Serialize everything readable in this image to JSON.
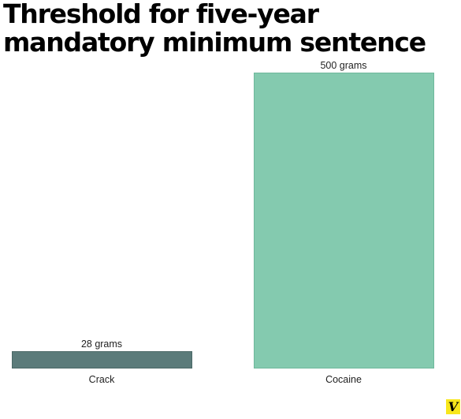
{
  "chart_data": {
    "type": "bar",
    "title": "Threshold for five-year mandatory minimum sentence",
    "categories": [
      "Crack",
      "Cocaine"
    ],
    "values": [
      28,
      500
    ],
    "data_labels": [
      "28 grams",
      "500 grams"
    ],
    "ylim": [
      0,
      500
    ],
    "xlabel": "",
    "ylabel": "",
    "grid": false,
    "legend": "none",
    "colors": [
      "#5b7b7a",
      "#84caaf"
    ],
    "bar_border_colors": [
      "#4a6866",
      "#6fb89c"
    ]
  },
  "logo": {
    "text": "V",
    "color": "#f8e71c"
  }
}
